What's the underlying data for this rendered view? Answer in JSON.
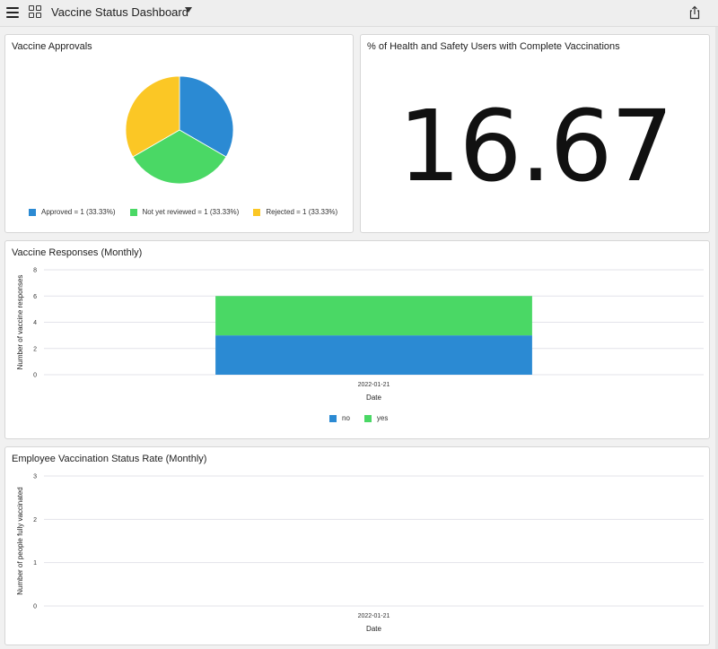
{
  "app": {
    "title": "Vaccine Status Dashboard"
  },
  "colors": {
    "approved": "#2b8ad3",
    "not_yet_reviewed": "#4ad865",
    "rejected": "#fbc725",
    "no": "#2b8ad3",
    "yes": "#4ad865",
    "grid": "#e3e3ea"
  },
  "icons": {
    "menu": "hamburger-icon",
    "grid": "grid-icon",
    "caret": "caret-down-icon",
    "share": "share-icon"
  },
  "approvals": {
    "title": "Vaccine Approvals",
    "legend": [
      {
        "label": "Approved = 1 (33.33%)",
        "color": "#2b8ad3"
      },
      {
        "label": "Not yet reviewed = 1 (33.33%)",
        "color": "#4ad865"
      },
      {
        "label": "Rejected = 1 (33.33%)",
        "color": "#fbc725"
      }
    ]
  },
  "metric": {
    "title": "% of Health and Safety Users with Complete Vaccinations",
    "value": "16.67"
  },
  "responses": {
    "title": "Vaccine Responses (Monthly)",
    "ylabel": "Number of vaccine responses",
    "xlabel": "Date",
    "legend": [
      {
        "label": "no",
        "color": "#2b8ad3"
      },
      {
        "label": "yes",
        "color": "#4ad865"
      }
    ]
  },
  "vaccination_rate": {
    "title": "Employee Vaccination Status Rate (Monthly)",
    "ylabel": "Number of people fully vaccinated",
    "xlabel": "Date"
  },
  "chart_data": [
    {
      "type": "pie",
      "title": "Vaccine Approvals",
      "categories": [
        "Approved",
        "Not yet reviewed",
        "Rejected"
      ],
      "values": [
        1,
        1,
        1
      ],
      "legend_position": "bottom"
    },
    {
      "type": "bar",
      "stacked": true,
      "title": "Vaccine Responses (Monthly)",
      "categories": [
        "2022-01-21"
      ],
      "series": [
        {
          "name": "no",
          "values": [
            3
          ]
        },
        {
          "name": "yes",
          "values": [
            3
          ]
        }
      ],
      "xlabel": "Date",
      "ylabel": "Number of vaccine responses",
      "ylim": [
        0,
        8
      ],
      "yticks": [
        0,
        2,
        4,
        6,
        8
      ],
      "grid": true,
      "legend_position": "bottom"
    },
    {
      "type": "line",
      "title": "Employee Vaccination Status Rate (Monthly)",
      "categories": [
        "2022-01-21"
      ],
      "series": [],
      "xlabel": "Date",
      "ylabel": "Number of people fully vaccinated",
      "ylim": [
        0,
        3
      ],
      "yticks": [
        0,
        1,
        2,
        3
      ],
      "grid": true
    }
  ]
}
